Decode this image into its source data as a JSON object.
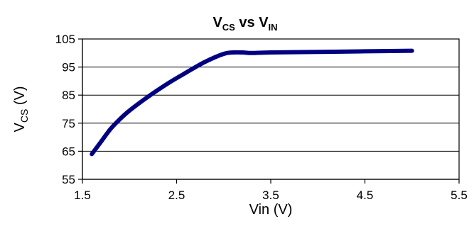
{
  "chart_data": {
    "type": "line",
    "title": {
      "main1": "V",
      "sub1": "CS",
      "mid": " vs V",
      "sub2": "IN"
    },
    "xlabel": "Vin (V)",
    "ylabel": {
      "main": "V",
      "sub": "CS",
      "rest": " (V)"
    },
    "xlim": [
      1.5,
      5.5
    ],
    "ylim": [
      55,
      105
    ],
    "x_ticks": [
      1.5,
      2.5,
      3.5,
      4.5,
      5.5
    ],
    "x_tick_labels": [
      "1.5",
      "2.5",
      "3.5",
      "4.5",
      "5.5"
    ],
    "y_ticks": [
      55,
      65,
      75,
      85,
      95,
      105
    ],
    "y_tick_labels": [
      "55",
      "65",
      "75",
      "85",
      "95",
      "105"
    ],
    "grid": "horizontal",
    "legend": "none",
    "series": [
      {
        "color": "#000080",
        "x": [
          1.6,
          1.7,
          1.8,
          1.9,
          2.0,
          2.2,
          2.4,
          2.6,
          2.8,
          3.0,
          3.1,
          3.2,
          3.3,
          3.5,
          4.0,
          4.5,
          5.0
        ],
        "y": [
          64,
          68.5,
          73,
          76.5,
          79.5,
          84.5,
          89,
          93,
          96.8,
          99.7,
          100.2,
          100.2,
          100.0,
          100.2,
          100.4,
          100.6,
          100.8
        ]
      }
    ]
  }
}
